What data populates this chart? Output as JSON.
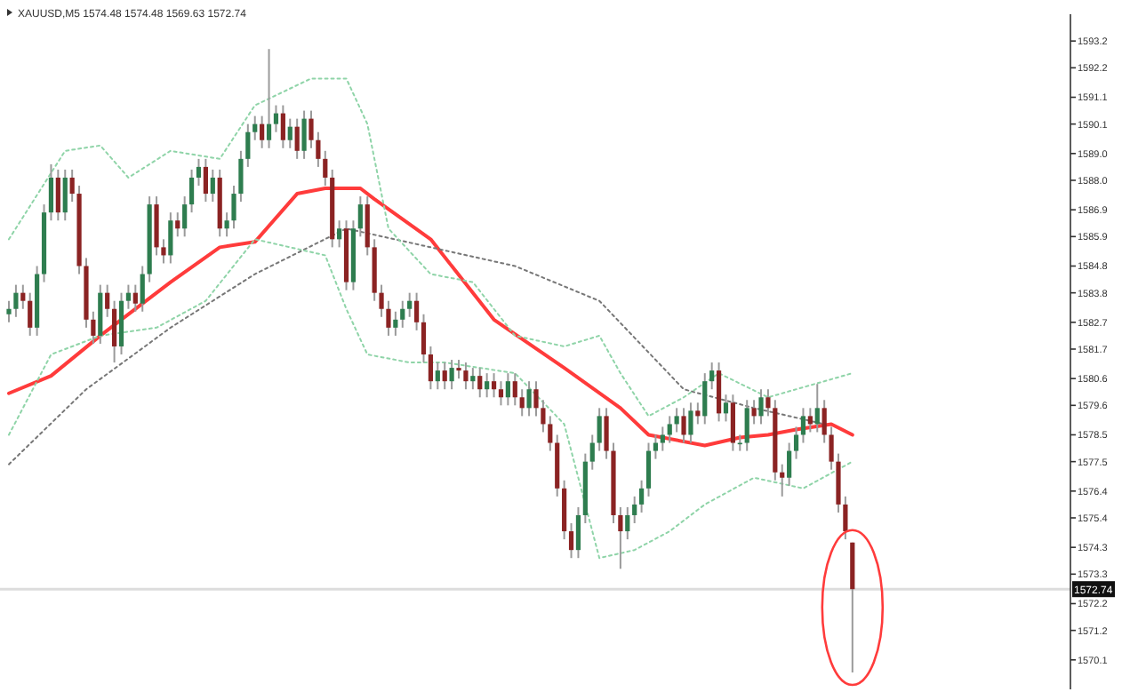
{
  "chart_data": {
    "type": "candlestick",
    "title": "XAUUSD,M5 1574.48 1574.48 1569.63 1572.74",
    "categories": [
      null,
      null,
      null,
      null,
      null,
      null,
      null,
      null,
      null,
      null,
      null,
      null,
      null,
      null,
      null,
      null,
      null,
      null,
      null,
      null,
      null,
      null,
      null,
      null,
      null,
      null,
      null,
      null,
      null,
      null,
      null,
      null,
      null,
      null,
      null,
      null,
      null,
      null,
      null,
      null,
      null,
      null,
      null,
      null,
      null,
      null,
      null,
      null,
      null,
      null,
      null,
      null,
      null,
      null,
      null,
      null,
      null,
      null,
      null,
      null,
      null,
      null,
      null,
      null,
      null,
      null,
      null,
      null,
      null,
      null,
      null,
      null,
      null,
      null,
      null,
      null,
      null,
      null,
      null,
      null,
      null,
      null,
      null,
      null,
      null,
      null,
      null,
      null,
      null,
      null,
      null,
      null,
      null,
      null,
      null,
      null,
      null,
      null,
      null,
      null,
      null,
      null,
      null,
      null,
      null,
      null,
      null,
      null,
      null,
      null,
      null,
      null,
      null,
      null,
      null,
      null,
      null,
      null,
      null,
      null,
      null,
      null,
      null,
      null,
      null,
      null,
      null,
      null,
      null,
      null,
      null,
      null,
      null,
      null,
      null,
      null,
      null,
      null,
      null,
      null,
      null,
      null,
      null,
      null,
      null,
      null,
      null,
      null,
      null,
      null,
      null
    ],
    "ohlc": [
      [
        1583.0,
        1583.5,
        1582.7,
        1583.2
      ],
      [
        1583.2,
        1584.1,
        1582.9,
        1583.8
      ],
      [
        1583.8,
        1584.1,
        1583.2,
        1583.5
      ],
      [
        1583.5,
        1583.8,
        1582.2,
        1582.5
      ],
      [
        1582.5,
        1584.8,
        1582.2,
        1584.5
      ],
      [
        1584.5,
        1587.1,
        1584.2,
        1586.8
      ],
      [
        1586.8,
        1588.6,
        1586.5,
        1588.1
      ],
      [
        1588.1,
        1588.4,
        1586.5,
        1586.8
      ],
      [
        1586.8,
        1588.4,
        1586.5,
        1588.1
      ],
      [
        1588.1,
        1588.4,
        1587.2,
        1587.5
      ],
      [
        1587.5,
        1587.8,
        1584.5,
        1584.8
      ],
      [
        1584.8,
        1585.1,
        1582.5,
        1582.8
      ],
      [
        1582.8,
        1583.1,
        1581.9,
        1582.2
      ],
      [
        1582.2,
        1584.1,
        1581.9,
        1583.8
      ],
      [
        1583.8,
        1584.1,
        1582.9,
        1583.2
      ],
      [
        1583.2,
        1583.5,
        1581.2,
        1581.8
      ],
      [
        1581.8,
        1583.8,
        1581.5,
        1583.5
      ],
      [
        1583.5,
        1584.1,
        1583.2,
        1583.8
      ],
      [
        1583.8,
        1584.1,
        1583.1,
        1583.4
      ],
      [
        1583.4,
        1584.8,
        1583.1,
        1584.5
      ],
      [
        1584.5,
        1587.4,
        1584.2,
        1587.1
      ],
      [
        1587.1,
        1587.4,
        1585.2,
        1585.5
      ],
      [
        1585.5,
        1585.8,
        1584.9,
        1585.2
      ],
      [
        1585.2,
        1586.8,
        1584.9,
        1586.5
      ],
      [
        1586.5,
        1586.8,
        1585.9,
        1586.2
      ],
      [
        1586.2,
        1587.4,
        1585.9,
        1587.1
      ],
      [
        1587.1,
        1588.4,
        1586.8,
        1588.1
      ],
      [
        1588.1,
        1588.8,
        1587.8,
        1588.5
      ],
      [
        1588.5,
        1588.8,
        1587.2,
        1587.5
      ],
      [
        1587.5,
        1588.4,
        1587.2,
        1588.1
      ],
      [
        1588.1,
        1588.4,
        1585.9,
        1586.2
      ],
      [
        1586.2,
        1586.8,
        1585.9,
        1586.5
      ],
      [
        1586.5,
        1587.8,
        1586.2,
        1587.5
      ],
      [
        1587.5,
        1589.1,
        1587.2,
        1588.8
      ],
      [
        1588.8,
        1590.1,
        1588.5,
        1589.8
      ],
      [
        1589.8,
        1590.4,
        1589.5,
        1590.1
      ],
      [
        1590.1,
        1590.4,
        1589.2,
        1589.5
      ],
      [
        1589.5,
        1592.9,
        1589.2,
        1590.1
      ],
      [
        1590.1,
        1590.8,
        1589.8,
        1590.5
      ],
      [
        1590.5,
        1590.8,
        1589.2,
        1589.5
      ],
      [
        1589.5,
        1590.3,
        1589.2,
        1590.0
      ],
      [
        1590.0,
        1590.3,
        1588.8,
        1589.1
      ],
      [
        1589.1,
        1590.6,
        1588.8,
        1590.3
      ],
      [
        1590.3,
        1590.6,
        1589.2,
        1589.5
      ],
      [
        1589.5,
        1589.8,
        1588.5,
        1588.8
      ],
      [
        1588.8,
        1589.1,
        1587.8,
        1588.1
      ],
      [
        1588.1,
        1588.4,
        1585.5,
        1585.8
      ],
      [
        1585.8,
        1586.5,
        1585.5,
        1586.2
      ],
      [
        1586.2,
        1586.5,
        1583.9,
        1584.2
      ],
      [
        1584.2,
        1586.5,
        1583.9,
        1586.2
      ],
      [
        1586.2,
        1587.4,
        1585.9,
        1587.1
      ],
      [
        1587.1,
        1587.4,
        1585.2,
        1585.5
      ],
      [
        1585.5,
        1585.8,
        1583.5,
        1583.8
      ],
      [
        1583.8,
        1584.1,
        1582.9,
        1583.2
      ],
      [
        1583.2,
        1583.5,
        1582.2,
        1582.5
      ],
      [
        1582.5,
        1583.1,
        1582.2,
        1582.8
      ],
      [
        1582.8,
        1583.5,
        1582.5,
        1583.2
      ],
      [
        1583.2,
        1583.8,
        1582.9,
        1583.5
      ],
      [
        1583.5,
        1583.8,
        1582.4,
        1582.7
      ],
      [
        1582.7,
        1583.0,
        1581.2,
        1581.5
      ],
      [
        1581.5,
        1581.8,
        1580.2,
        1580.5
      ],
      [
        1580.5,
        1581.2,
        1580.2,
        1580.9
      ],
      [
        1580.9,
        1581.2,
        1580.2,
        1580.5
      ],
      [
        1580.5,
        1581.3,
        1580.2,
        1581.0
      ],
      [
        1581.0,
        1581.3,
        1580.6,
        1580.9
      ],
      [
        1580.9,
        1581.2,
        1580.2,
        1580.5
      ],
      [
        1580.5,
        1581.0,
        1580.2,
        1580.7
      ],
      [
        1580.7,
        1581.0,
        1579.9,
        1580.2
      ],
      [
        1580.2,
        1580.8,
        1579.9,
        1580.5
      ],
      [
        1580.5,
        1580.8,
        1579.9,
        1580.2
      ],
      [
        1580.2,
        1580.5,
        1579.6,
        1579.9
      ],
      [
        1579.9,
        1580.8,
        1579.6,
        1580.5
      ],
      [
        1580.5,
        1580.8,
        1579.6,
        1579.9
      ],
      [
        1579.9,
        1580.2,
        1579.2,
        1579.5
      ],
      [
        1579.5,
        1580.5,
        1579.2,
        1580.2
      ],
      [
        1580.2,
        1580.5,
        1579.2,
        1579.5
      ],
      [
        1579.5,
        1579.8,
        1578.6,
        1578.9
      ],
      [
        1578.9,
        1579.2,
        1577.9,
        1578.2
      ],
      [
        1578.2,
        1578.5,
        1576.2,
        1576.5
      ],
      [
        1576.5,
        1576.8,
        1574.6,
        1574.9
      ],
      [
        1574.9,
        1575.2,
        1573.9,
        1574.2
      ],
      [
        1574.2,
        1575.8,
        1573.9,
        1575.5
      ],
      [
        1575.5,
        1577.8,
        1575.2,
        1577.5
      ],
      [
        1577.5,
        1578.5,
        1577.2,
        1578.2
      ],
      [
        1578.2,
        1579.5,
        1577.9,
        1579.2
      ],
      [
        1579.2,
        1579.5,
        1577.6,
        1577.9
      ],
      [
        1577.9,
        1578.2,
        1575.2,
        1575.5
      ],
      [
        1575.5,
        1575.8,
        1573.5,
        1574.9
      ],
      [
        1574.9,
        1575.8,
        1574.6,
        1575.5
      ],
      [
        1575.5,
        1576.2,
        1575.2,
        1575.9
      ],
      [
        1575.9,
        1576.8,
        1575.6,
        1576.5
      ],
      [
        1576.5,
        1578.2,
        1576.2,
        1577.9
      ],
      [
        1577.9,
        1578.5,
        1577.6,
        1578.2
      ],
      [
        1578.2,
        1578.8,
        1577.9,
        1578.5
      ],
      [
        1578.5,
        1579.2,
        1578.2,
        1578.9
      ],
      [
        1578.9,
        1579.5,
        1578.6,
        1579.2
      ],
      [
        1579.2,
        1579.5,
        1578.2,
        1578.5
      ],
      [
        1578.5,
        1579.7,
        1578.2,
        1579.4
      ],
      [
        1579.4,
        1579.7,
        1578.9,
        1579.2
      ],
      [
        1579.2,
        1580.8,
        1578.9,
        1580.5
      ],
      [
        1580.5,
        1581.2,
        1580.2,
        1580.9
      ],
      [
        1580.9,
        1581.2,
        1579.0,
        1579.3
      ],
      [
        1579.3,
        1580.0,
        1579.0,
        1579.7
      ],
      [
        1579.7,
        1580.0,
        1577.9,
        1578.2
      ],
      [
        1578.2,
        1578.5,
        1577.9,
        1578.2
      ],
      [
        1578.2,
        1579.8,
        1577.9,
        1579.5
      ],
      [
        1579.5,
        1579.8,
        1578.9,
        1579.2
      ],
      [
        1579.2,
        1580.2,
        1578.9,
        1579.9
      ],
      [
        1579.9,
        1580.2,
        1579.2,
        1579.5
      ],
      [
        1579.5,
        1579.8,
        1576.8,
        1577.1
      ],
      [
        1577.1,
        1577.4,
        1576.2,
        1576.9
      ],
      [
        1576.9,
        1578.2,
        1576.6,
        1577.9
      ],
      [
        1577.9,
        1578.8,
        1577.6,
        1578.5
      ],
      [
        1578.5,
        1579.5,
        1578.2,
        1579.2
      ],
      [
        1579.2,
        1579.5,
        1578.6,
        1578.9
      ],
      [
        1578.9,
        1580.4,
        1578.6,
        1579.5
      ],
      [
        1579.5,
        1579.8,
        1578.2,
        1578.5
      ],
      [
        1578.5,
        1578.8,
        1577.2,
        1577.5
      ],
      [
        1577.5,
        1577.8,
        1575.6,
        1575.9
      ],
      [
        1575.9,
        1576.2,
        1574.6,
        1574.9
      ],
      [
        1574.48,
        1574.48,
        1569.63,
        1572.74
      ],
      null,
      null,
      null,
      null,
      null,
      null,
      null,
      null,
      null,
      null,
      null,
      null,
      null,
      null,
      null,
      null,
      null,
      null,
      null,
      null,
      null,
      null,
      null,
      null,
      null,
      null,
      null,
      null,
      null,
      null
    ],
    "series": [
      {
        "type": "line",
        "color": "#ff3b3b",
        "line_style": "solid",
        "values": [
          1580.05,
          null,
          null,
          null,
          null,
          null,
          1580.7,
          null,
          null,
          null,
          null,
          null,
          null,
          1582.2,
          null,
          null,
          null,
          null,
          null,
          null,
          null,
          null,
          null,
          1584.2,
          null,
          null,
          null,
          null,
          null,
          null,
          1585.5,
          null,
          null,
          null,
          null,
          1585.7,
          null,
          null,
          null,
          null,
          null,
          1587.5,
          null,
          null,
          null,
          1587.7,
          null,
          null,
          null,
          null,
          1587.7,
          null,
          1587.3,
          null,
          null,
          null,
          null,
          null,
          null,
          null,
          1585.8,
          null,
          null,
          null,
          null,
          null,
          null,
          null,
          null,
          1582.8,
          null,
          null,
          null,
          null,
          null,
          null,
          null,
          null,
          null,
          1581.0,
          null,
          null,
          null,
          null,
          null,
          null,
          null,
          1579.5,
          null,
          null,
          null,
          1578.5,
          null,
          null,
          null,
          null,
          null,
          null,
          null,
          1578.1,
          null,
          null,
          null,
          null,
          1578.4,
          null,
          null,
          null,
          1578.5,
          null,
          null,
          null,
          1578.7,
          null,
          null,
          null,
          null,
          1578.9,
          null,
          null,
          1578.5,
          null,
          null,
          null,
          null,
          null,
          null,
          null,
          null,
          null,
          null,
          null,
          null,
          null,
          null,
          null,
          null,
          null,
          null,
          null,
          null,
          null,
          null,
          null,
          null,
          null,
          null,
          null,
          null,
          null,
          null
        ]
      },
      {
        "type": "line",
        "color": "#777777",
        "line_style": "dotted",
        "values": [
          1577.4,
          null,
          null,
          null,
          null,
          null,
          null,
          null,
          null,
          null,
          null,
          1580.2,
          null,
          null,
          null,
          null,
          null,
          null,
          null,
          null,
          null,
          null,
          null,
          1582.5,
          null,
          null,
          null,
          null,
          null,
          null,
          null,
          null,
          null,
          null,
          null,
          1584.5,
          null,
          null,
          null,
          null,
          null,
          null,
          null,
          null,
          null,
          null,
          null,
          null,
          1586.2,
          null,
          null,
          null,
          null,
          null,
          null,
          null,
          null,
          null,
          null,
          null,
          1585.5,
          null,
          null,
          null,
          null,
          null,
          null,
          null,
          null,
          null,
          null,
          null,
          1584.8,
          null,
          null,
          null,
          null,
          null,
          null,
          null,
          null,
          null,
          null,
          null,
          1583.5,
          null,
          null,
          null,
          null,
          null,
          null,
          null,
          null,
          null,
          null,
          null,
          1580.2,
          null,
          null,
          null,
          null,
          null,
          null,
          null,
          null,
          null,
          1579.5,
          null,
          null,
          null,
          null,
          null,
          null,
          null,
          null,
          null,
          1578.9,
          null,
          null,
          null,
          null,
          null,
          null,
          null,
          null,
          null,
          null,
          null,
          null,
          null,
          null,
          null,
          null,
          null,
          null,
          null,
          null,
          null,
          null,
          null,
          null,
          null,
          null,
          null,
          null,
          null,
          null,
          null,
          null,
          null,
          null
        ]
      },
      {
        "type": "line",
        "color": "#8fd4a8",
        "line_style": "dotted",
        "values": [
          1585.8,
          null,
          null,
          null,
          null,
          null,
          null,
          null,
          1589.1,
          null,
          null,
          null,
          null,
          1589.3,
          null,
          null,
          null,
          1588.1,
          null,
          null,
          null,
          null,
          null,
          1589.1,
          null,
          null,
          null,
          null,
          null,
          null,
          1588.8,
          null,
          null,
          null,
          null,
          1590.8,
          null,
          null,
          null,
          null,
          null,
          null,
          null,
          1591.8,
          null,
          null,
          null,
          null,
          1591.8,
          null,
          null,
          1590.1,
          null,
          null,
          1586.2,
          null,
          null,
          null,
          null,
          null,
          1584.5,
          null,
          null,
          null,
          null,
          null,
          1584.2,
          null,
          null,
          null,
          null,
          null,
          1582.2,
          null,
          null,
          null,
          null,
          null,
          null,
          1581.8,
          null,
          null,
          null,
          null,
          1582.2,
          null,
          null,
          1580.8,
          null,
          null,
          null,
          1579.2,
          null,
          null,
          null,
          null,
          1579.9,
          null,
          null,
          null,
          null,
          1580.8,
          null,
          null,
          null,
          null,
          null,
          null,
          1579.9,
          null,
          null,
          null,
          null,
          null,
          null,
          null,
          1580.5,
          null,
          null,
          null,
          1580.8,
          null,
          null,
          null,
          null,
          null,
          null,
          null,
          null,
          null,
          null,
          null,
          null,
          null,
          null,
          null,
          null,
          null,
          null,
          null,
          null,
          null,
          null,
          null,
          null,
          null,
          null,
          null,
          null,
          null,
          null
        ]
      },
      {
        "type": "line",
        "color": "#8fd4a8",
        "line_style": "dotted",
        "values": [
          1578.5,
          null,
          null,
          null,
          null,
          null,
          1581.5,
          null,
          null,
          null,
          null,
          null,
          null,
          1582.2,
          null,
          null,
          null,
          null,
          null,
          null,
          null,
          1582.5,
          null,
          null,
          null,
          null,
          null,
          null,
          1583.5,
          null,
          null,
          null,
          null,
          null,
          null,
          1585.8,
          null,
          null,
          null,
          null,
          null,
          null,
          null,
          null,
          null,
          1585.2,
          null,
          null,
          1583.2,
          null,
          null,
          1581.5,
          null,
          null,
          null,
          null,
          null,
          1581.2,
          null,
          null,
          null,
          null,
          1581.2,
          null,
          null,
          null,
          null,
          null,
          null,
          null,
          null,
          null,
          1580.8,
          null,
          null,
          null,
          null,
          null,
          null,
          1578.9,
          null,
          null,
          null,
          null,
          1573.9,
          null,
          null,
          null,
          null,
          1574.2,
          null,
          null,
          null,
          null,
          1574.9,
          null,
          null,
          null,
          null,
          1575.9,
          null,
          null,
          null,
          null,
          null,
          null,
          1576.9,
          null,
          null,
          null,
          null,
          null,
          null,
          1576.5,
          null,
          null,
          null,
          null,
          null,
          null,
          1577.5,
          null,
          null,
          null,
          null,
          null,
          null,
          null,
          null,
          null,
          null,
          null,
          null,
          null,
          null,
          null,
          null,
          null,
          null,
          null,
          null,
          null,
          null,
          null,
          null,
          null,
          null,
          null,
          null,
          null,
          null
        ]
      }
    ],
    "ylim": [
      1569.0,
      1594.2
    ],
    "yticks": [
      1593.2,
      1592.2,
      1591.1,
      1590.1,
      {
        "value": 1589.0,
        "label": "1589.0"
      },
      {
        "value": 1588.0,
        "label": "1588.0"
      },
      1586.9,
      1585.9,
      1584.8,
      1583.8,
      1582.7,
      1581.7,
      1580.6,
      1579.6,
      1578.5,
      1577.5,
      1576.4,
      1575.4,
      1574.3,
      1573.3,
      1572.2,
      1571.2,
      1570.1
    ],
    "ref_lines": [
      {
        "axis": "y",
        "value": 1572.74,
        "label": "1572.74",
        "color": "#dddddd"
      }
    ],
    "tick_labels": "y",
    "grid": false,
    "marker": "none"
  }
}
